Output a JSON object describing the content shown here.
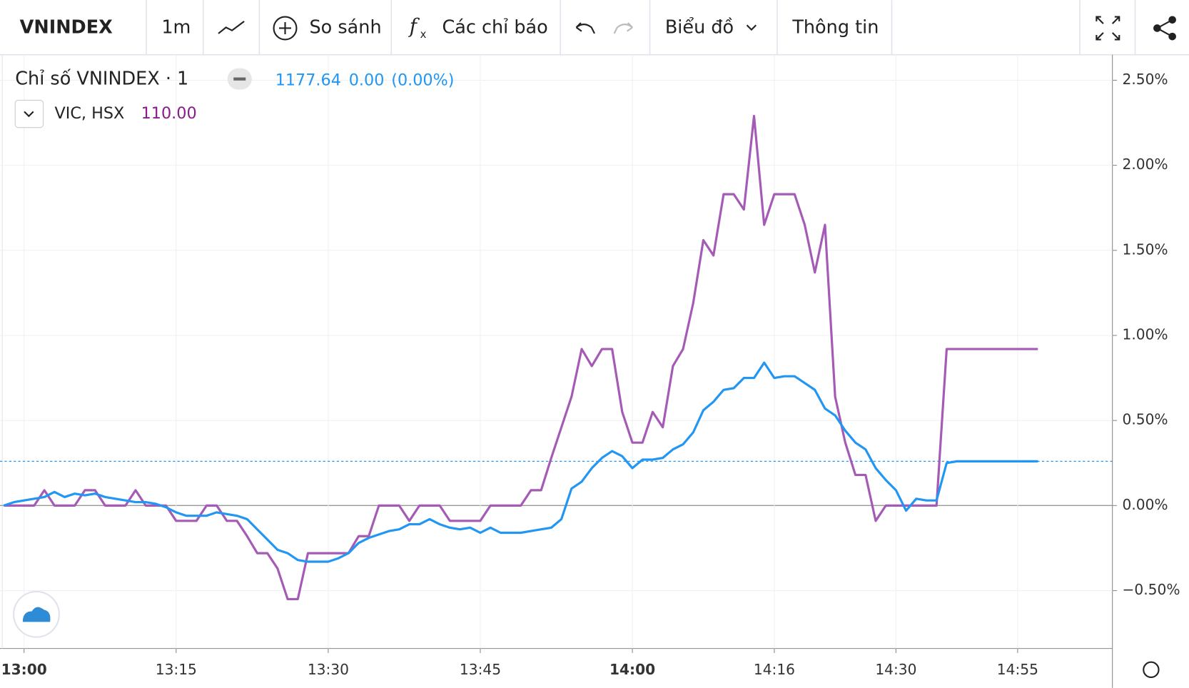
{
  "toolbar": {
    "symbol": "VNINDEX",
    "interval": "1m",
    "compare": "So sánh",
    "indicators": "Các chỉ báo",
    "chart": "Biểu đồ",
    "info": "Thông tin"
  },
  "legend": {
    "main_last": "1177.64",
    "main_change": "0.00",
    "main_change_pct": "(0.00%)",
    "vic_last": "110.00"
  },
  "chart_data": {
    "type": "line",
    "categories": [
      null,
      null,
      "13:00",
      null,
      null,
      null,
      null,
      null,
      null,
      null,
      null,
      null,
      null,
      null,
      null,
      null,
      null,
      "13:15",
      null,
      null,
      null,
      null,
      null,
      null,
      null,
      null,
      null,
      null,
      null,
      null,
      null,
      null,
      "13:30",
      null,
      null,
      null,
      null,
      null,
      null,
      null,
      null,
      null,
      null,
      null,
      null,
      null,
      null,
      "13:45",
      null,
      null,
      null,
      null,
      null,
      null,
      null,
      null,
      null,
      null,
      null,
      null,
      null,
      null,
      "14:00",
      null,
      null,
      null,
      null,
      null,
      null,
      null,
      null,
      null,
      null,
      null,
      null,
      null,
      "14:16",
      null,
      null,
      null,
      null,
      null,
      null,
      null,
      null,
      null,
      null,
      null,
      "14:30",
      null,
      null,
      null,
      null,
      null,
      null,
      null,
      null,
      null,
      null,
      null,
      "14:55",
      null,
      null
    ],
    "series": [
      {
        "name": "Chỉ số VNINDEX · 1",
        "color": "#2196f3",
        "values": [
          0,
          0.02,
          0.03,
          0.04,
          0.05,
          0.08,
          0.05,
          0.07,
          0.06,
          0.07,
          0.05,
          0.04,
          0.03,
          0.02,
          0.02,
          0.01,
          -0.01,
          -0.04,
          -0.06,
          -0.06,
          -0.06,
          -0.04,
          -0.05,
          -0.06,
          -0.08,
          -0.14,
          -0.2,
          -0.26,
          -0.28,
          -0.32,
          -0.33,
          -0.33,
          -0.33,
          -0.31,
          -0.28,
          -0.22,
          -0.19,
          -0.17,
          -0.15,
          -0.14,
          -0.11,
          -0.11,
          -0.08,
          -0.11,
          -0.13,
          -0.14,
          -0.13,
          -0.16,
          -0.13,
          -0.16,
          -0.16,
          -0.16,
          -0.15,
          -0.14,
          -0.13,
          -0.08,
          0.1,
          0.14,
          0.22,
          0.28,
          0.32,
          0.29,
          0.22,
          0.27,
          0.27,
          0.28,
          0.33,
          0.36,
          0.43,
          0.56,
          0.61,
          0.68,
          0.69,
          0.75,
          0.75,
          0.84,
          0.75,
          0.76,
          0.76,
          0.72,
          0.68,
          0.57,
          0.53,
          0.44,
          0.37,
          0.33,
          0.22,
          0.15,
          0.09,
          -0.03,
          0.04,
          0.03,
          0.03,
          0.25,
          0.26,
          0.26,
          0.26,
          0.26,
          0.26,
          0.26,
          0.26,
          0.26,
          0.26
        ]
      },
      {
        "name": "VIC, HSX",
        "color": "#a55bb5",
        "values": [
          0,
          0,
          0,
          0,
          0.09,
          0,
          0,
          0,
          0.09,
          0.09,
          0,
          0,
          0,
          0.09,
          0,
          0,
          0,
          -0.09,
          -0.09,
          -0.09,
          0,
          0,
          -0.09,
          -0.09,
          -0.18,
          -0.28,
          -0.28,
          -0.37,
          -0.55,
          -0.55,
          -0.28,
          -0.28,
          -0.28,
          -0.28,
          -0.28,
          -0.18,
          -0.18,
          0,
          0,
          0,
          -0.09,
          0,
          0,
          0,
          -0.09,
          -0.09,
          -0.09,
          -0.09,
          0,
          0,
          0,
          0,
          0.09,
          0.09,
          0.28,
          0.46,
          0.64,
          0.92,
          0.82,
          0.92,
          0.92,
          0.55,
          0.37,
          0.37,
          0.55,
          0.46,
          0.82,
          0.92,
          1.19,
          1.56,
          1.47,
          1.83,
          1.83,
          1.74,
          2.29,
          1.65,
          1.83,
          1.83,
          1.83,
          1.65,
          1.37,
          1.65,
          0.64,
          0.37,
          0.18,
          0.18,
          -0.09,
          0,
          0,
          0,
          0,
          0,
          0,
          0.92,
          0.92,
          0.92,
          0.92,
          0.92,
          0.92,
          0.92,
          0.92,
          0.92,
          0.92
        ]
      }
    ],
    "ylim": [
      -0.84,
      2.65
    ],
    "yticks": [
      {
        "value": -0.5,
        "label": "−0.50%"
      },
      {
        "value": 0,
        "label": "0.00%"
      },
      {
        "value": 0.5,
        "label": "0.50%"
      },
      {
        "value": 1,
        "label": "1.00%"
      },
      {
        "value": 1.5,
        "label": "1.50%"
      },
      {
        "value": 2,
        "label": "2.00%"
      },
      {
        "value": 2.5,
        "label": "2.50%"
      }
    ],
    "grid": true
  }
}
